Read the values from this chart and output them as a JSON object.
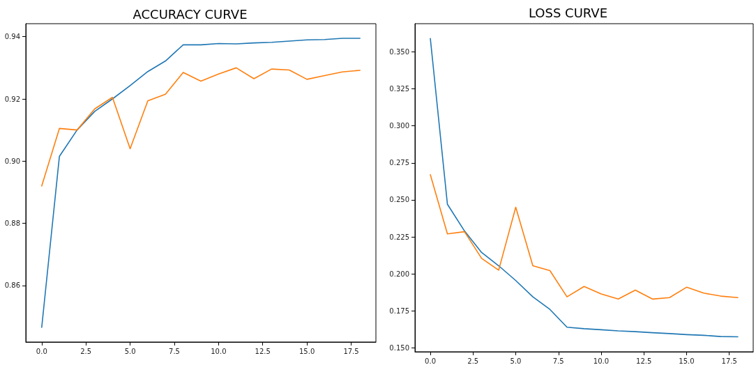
{
  "chart_data": [
    {
      "type": "line",
      "title": "ACCURACY CURVE",
      "x": [
        0,
        1,
        2,
        3,
        4,
        5,
        6,
        7,
        8,
        9,
        10,
        11,
        12,
        13,
        14,
        15,
        16,
        17,
        18
      ],
      "series": [
        {
          "color": "#1f77b4",
          "values": [
            0.8465,
            0.9015,
            0.91,
            0.916,
            0.92,
            0.9243,
            0.9288,
            0.9322,
            0.9374,
            0.9374,
            0.9378,
            0.9377,
            0.938,
            0.9382,
            0.9386,
            0.939,
            0.9391,
            0.9395,
            0.9395
          ]
        },
        {
          "color": "#ff7f0e",
          "values": [
            0.892,
            0.9105,
            0.91,
            0.9168,
            0.9205,
            0.904,
            0.9194,
            0.9215,
            0.9285,
            0.9257,
            0.928,
            0.93,
            0.9265,
            0.9296,
            0.9293,
            0.9263,
            0.9275,
            0.9287,
            0.9292
          ]
        }
      ],
      "xlim": [
        -0.9,
        18.9
      ],
      "xticks": [
        {
          "value": 0,
          "label": "0.0"
        },
        {
          "value": 2.5,
          "label": "2.5"
        },
        {
          "value": 5,
          "label": "5.0"
        },
        {
          "value": 7.5,
          "label": "7.5"
        },
        {
          "value": 10,
          "label": "10.0"
        },
        {
          "value": 12.5,
          "label": "12.5"
        },
        {
          "value": 15,
          "label": "15.0"
        },
        {
          "value": 17.5,
          "label": "17.5"
        }
      ],
      "ylim": [
        0.8418,
        0.9442
      ],
      "yticks": [
        0.86,
        0.88,
        {
          "value": 0.9,
          "label": "0.90"
        },
        0.92,
        0.94
      ],
      "grid": false,
      "marker": "none",
      "line_style": "solid"
    },
    {
      "type": "line",
      "title": "LOSS CURVE",
      "x": [
        0,
        1,
        2,
        3,
        4,
        5,
        6,
        7,
        8,
        9,
        10,
        11,
        12,
        13,
        14,
        15,
        16,
        17,
        18
      ],
      "series": [
        {
          "color": "#1f77b4",
          "values": [
            0.359,
            0.247,
            0.229,
            0.2145,
            0.2055,
            0.1955,
            0.1845,
            0.176,
            0.164,
            0.163,
            0.1623,
            0.1615,
            0.161,
            0.1603,
            0.1597,
            0.159,
            0.1585,
            0.1577,
            0.1575
          ]
        },
        {
          "color": "#ff7f0e",
          "values": [
            0.267,
            0.227,
            0.2285,
            0.2105,
            0.2025,
            0.245,
            0.2055,
            0.2022,
            0.1845,
            0.1915,
            0.1865,
            0.183,
            0.189,
            0.183,
            0.184,
            0.191,
            0.187,
            0.185,
            0.184
          ]
        }
      ],
      "xlim": [
        -0.9,
        18.9
      ],
      "xticks": [
        {
          "value": 0,
          "label": "0.0"
        },
        {
          "value": 2.5,
          "label": "2.5"
        },
        {
          "value": 5,
          "label": "5.0"
        },
        {
          "value": 7.5,
          "label": "7.5"
        },
        {
          "value": 10,
          "label": "10.0"
        },
        {
          "value": 12.5,
          "label": "12.5"
        },
        {
          "value": 15,
          "label": "15.0"
        },
        {
          "value": 17.5,
          "label": "17.5"
        }
      ],
      "ylim": [
        0.1474,
        0.369
      ],
      "yticks": [
        {
          "value": 0.15,
          "label": "0.150"
        },
        {
          "value": 0.175,
          "label": "0.175"
        },
        {
          "value": 0.2,
          "label": "0.200"
        },
        {
          "value": 0.225,
          "label": "0.225"
        },
        {
          "value": 0.25,
          "label": "0.250"
        },
        {
          "value": 0.275,
          "label": "0.275"
        },
        {
          "value": 0.3,
          "label": "0.300"
        },
        {
          "value": 0.325,
          "label": "0.325"
        },
        {
          "value": 0.35,
          "label": "0.350"
        }
      ],
      "grid": false,
      "marker": "none",
      "line_style": "solid"
    }
  ]
}
